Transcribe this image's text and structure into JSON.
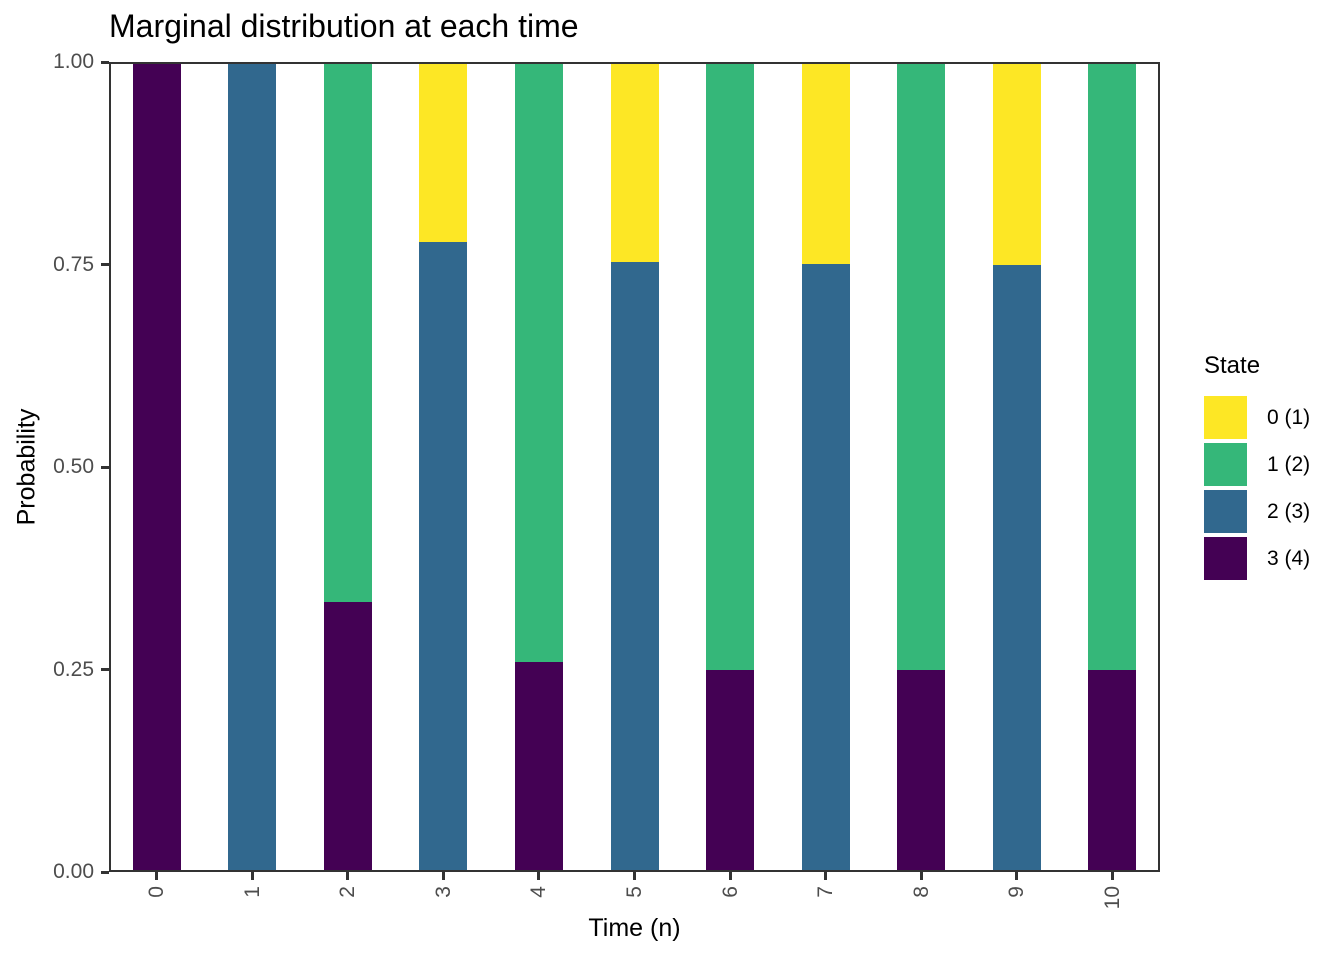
{
  "title": "Marginal distribution at each time",
  "axes": {
    "x": {
      "label": "Time (n)",
      "ticks": [
        "0",
        "1",
        "2",
        "3",
        "4",
        "5",
        "6",
        "7",
        "8",
        "9",
        "10"
      ]
    },
    "y": {
      "label": "Probability",
      "ticks": [
        "0.00",
        "0.25",
        "0.50",
        "0.75",
        "1.00"
      ]
    }
  },
  "legend": {
    "title": "State",
    "entries": [
      {
        "label": "0 (1)",
        "color": "#FDE725"
      },
      {
        "label": "1 (2)",
        "color": "#35B779"
      },
      {
        "label": "2 (3)",
        "color": "#31688E"
      },
      {
        "label": "3 (4)",
        "color": "#440154"
      }
    ]
  },
  "colors": {
    "axis_text": "#4D4D4D",
    "panel_border": "#333333",
    "title_text": "#000000"
  },
  "chart_data": {
    "type": "bar",
    "stacked": true,
    "title": "Marginal distribution at each time",
    "xlabel": "Time (n)",
    "ylabel": "Probability",
    "ylim": [
      0,
      1
    ],
    "grid": false,
    "legend_position": "right",
    "categories": [
      "0",
      "1",
      "2",
      "3",
      "4",
      "5",
      "6",
      "7",
      "8",
      "9",
      "10"
    ],
    "series": [
      {
        "name": "0 (1)",
        "color": "#FDE725",
        "values": [
          0,
          0,
          0,
          0.222,
          0,
          0.247,
          0,
          0.249,
          0,
          0.25,
          0
        ]
      },
      {
        "name": "1 (2)",
        "color": "#35B779",
        "values": [
          0,
          0,
          0.667,
          0,
          0.741,
          0,
          0.75,
          0,
          0.75,
          0,
          0.75
        ]
      },
      {
        "name": "2 (3)",
        "color": "#31688E",
        "values": [
          0,
          1,
          0,
          0.778,
          0,
          0.753,
          0,
          0.751,
          0,
          0.75,
          0
        ]
      },
      {
        "name": "3 (4)",
        "color": "#440154",
        "values": [
          1,
          0,
          0.333,
          0,
          0.259,
          0,
          0.25,
          0,
          0.25,
          0,
          0.25
        ]
      }
    ],
    "stack_order_bottom_to_top": [
      "3 (4)",
      "2 (3)",
      "1 (2)",
      "0 (1)"
    ]
  }
}
